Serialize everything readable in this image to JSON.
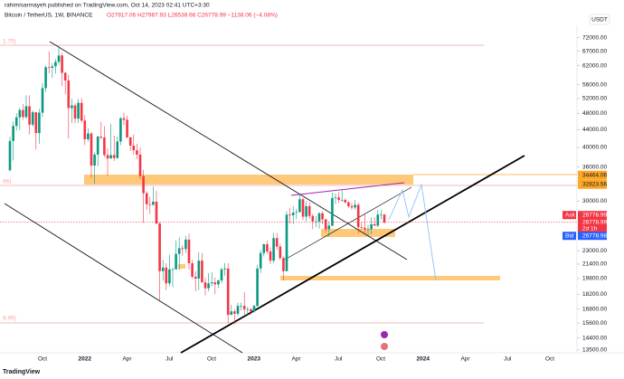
{
  "header": {
    "byline": "rahimisarmayeh published on TradingView.com, Oct 14, 2023 02:41 UTC+3:30",
    "symbol": "Bitcoin / TetherUS, 1W, BINANCE",
    "ohlc": "O27917.06 H27987.93 L26538.66 C26778.99 −1138.06 (−4.08%)",
    "currency": "USDT",
    "footer": "TradingView"
  },
  "chart_data": {
    "type": "candlestick",
    "log_scale": true,
    "up_color": "#089981",
    "down_color": "#f23645",
    "ylim": [
      13300,
      77000
    ],
    "yticks": [
      {
        "value": 72000,
        "label": "72000.00"
      },
      {
        "value": 67000,
        "label": "67000.00"
      },
      {
        "value": 62000,
        "label": "62000.00"
      },
      {
        "value": 56000,
        "label": "56000.00"
      },
      {
        "value": 52000,
        "label": "52000.00"
      },
      {
        "value": 48000,
        "label": "48000.00"
      },
      {
        "value": 44000,
        "label": "44000.00"
      },
      {
        "value": 40000,
        "label": "40000.00"
      },
      {
        "value": 36000,
        "label": "36000.00"
      },
      {
        "value": 30000,
        "label": "30000.00"
      },
      {
        "value": 23000,
        "label": "23000.00"
      },
      {
        "value": 21400,
        "label": "21400.00"
      },
      {
        "value": 19800,
        "label": "19800.00"
      },
      {
        "value": 18200,
        "label": "18200.00"
      },
      {
        "value": 16800,
        "label": "16800.00"
      },
      {
        "value": 15600,
        "label": "15600.00"
      },
      {
        "value": 14400,
        "label": "14400.00"
      },
      {
        "value": 13500,
        "label": "13500.00"
      }
    ],
    "x_labels": [
      "Oct",
      "2022",
      "Apr",
      "Jul",
      "Oct",
      "2023",
      "Apr",
      "Jul",
      "Oct",
      "2024",
      "Apr",
      "Jul",
      "Oct"
    ],
    "level_labels": [
      "1.75)",
      "66)",
      "9.99)"
    ],
    "price_labels": [
      {
        "value": 34464.06,
        "color": "#ffa726"
      },
      {
        "value": 32823.56,
        "color": "#ffa726"
      }
    ],
    "last_price": {
      "ask_text": "Ask",
      "ask": 26778.99,
      "close": 26778.99,
      "countdown": "2d 1h",
      "bid_text": "Bid",
      "bid": 26778.98
    },
    "candles": [
      [
        35400,
        42400,
        35200,
        41400
      ],
      [
        41400,
        46000,
        37300,
        44900
      ],
      [
        44900,
        48100,
        43800,
        47000
      ],
      [
        47000,
        49400,
        43900,
        48900
      ],
      [
        48900,
        50500,
        46400,
        47100
      ],
      [
        47100,
        52900,
        46600,
        49900
      ],
      [
        49900,
        52900,
        42900,
        45200
      ],
      [
        45200,
        48800,
        44700,
        48300
      ],
      [
        48300,
        48400,
        39600,
        43200
      ],
      [
        43200,
        49200,
        40800,
        48200
      ],
      [
        48200,
        56500,
        47100,
        55000
      ],
      [
        55000,
        62000,
        53900,
        61500
      ],
      [
        61500,
        67000,
        59500,
        61300
      ],
      [
        61300,
        62900,
        58000,
        61800
      ],
      [
        61800,
        64300,
        59400,
        63300
      ],
      [
        63300,
        69000,
        62300,
        65500
      ],
      [
        65500,
        66300,
        55600,
        59700
      ],
      [
        59700,
        59900,
        53200,
        57300
      ],
      [
        57300,
        59100,
        42000,
        49400
      ],
      [
        49400,
        51900,
        45600,
        50100
      ],
      [
        50100,
        50600,
        45500,
        46700
      ],
      [
        46700,
        51900,
        45600,
        50800
      ],
      [
        50800,
        52100,
        45700,
        46200
      ],
      [
        46200,
        47600,
        40500,
        41800
      ],
      [
        41800,
        44400,
        41300,
        43100
      ],
      [
        43100,
        43500,
        34000,
        36300
      ],
      [
        36300,
        38900,
        32900,
        38500
      ],
      [
        38500,
        42600,
        36200,
        42400
      ],
      [
        42400,
        45900,
        41700,
        42200
      ],
      [
        42200,
        44800,
        38000,
        38400
      ],
      [
        38400,
        39800,
        34300,
        37700
      ],
      [
        37700,
        45400,
        37700,
        38400
      ],
      [
        38400,
        42600,
        37200,
        37800
      ],
      [
        37800,
        42400,
        37600,
        41300
      ],
      [
        41300,
        47000,
        40500,
        46800
      ],
      [
        46800,
        48200,
        45100,
        46400
      ],
      [
        46400,
        47400,
        42100,
        42200
      ],
      [
        42200,
        42400,
        39200,
        40400
      ],
      [
        40400,
        42900,
        38500,
        39400
      ],
      [
        39400,
        40800,
        37600,
        38500
      ],
      [
        38500,
        40000,
        33700,
        34300
      ],
      [
        34300,
        35500,
        26700,
        31300
      ],
      [
        31300,
        31600,
        28600,
        29500
      ],
      [
        29500,
        30700,
        28000,
        29400
      ],
      [
        29400,
        32400,
        29300,
        29900
      ],
      [
        29900,
        31700,
        26500,
        26600
      ],
      [
        26600,
        26800,
        17600,
        20600
      ],
      [
        20600,
        21900,
        19600,
        21000
      ],
      [
        21000,
        21500,
        18600,
        19300
      ],
      [
        19300,
        22500,
        19000,
        20800
      ],
      [
        20800,
        21000,
        18900,
        20800
      ],
      [
        20800,
        24300,
        20800,
        22600
      ],
      [
        22600,
        24700,
        20700,
        23300
      ],
      [
        23300,
        23700,
        22400,
        23200
      ],
      [
        23200,
        24900,
        22700,
        24400
      ],
      [
        24400,
        25200,
        20800,
        21500
      ],
      [
        21500,
        21900,
        19800,
        20000
      ],
      [
        20000,
        20600,
        18500,
        19800
      ],
      [
        19800,
        22800,
        18600,
        21800
      ],
      [
        21800,
        22700,
        19400,
        19400
      ],
      [
        19400,
        19900,
        18100,
        18800
      ],
      [
        18800,
        20400,
        18500,
        19300
      ],
      [
        19300,
        20500,
        19000,
        19400
      ],
      [
        19400,
        19900,
        18200,
        19200
      ],
      [
        19200,
        19700,
        18800,
        19600
      ],
      [
        19600,
        21000,
        19300,
        20800
      ],
      [
        20800,
        21500,
        20100,
        20900
      ],
      [
        20900,
        21500,
        15600,
        16300
      ],
      [
        16300,
        17200,
        16300,
        16600
      ],
      [
        16600,
        16800,
        15500,
        16400
      ],
      [
        16400,
        17400,
        16200,
        17100
      ],
      [
        17100,
        17400,
        16700,
        17100
      ],
      [
        17100,
        18400,
        16300,
        16800
      ],
      [
        16800,
        17000,
        16300,
        16800
      ],
      [
        16800,
        16900,
        16300,
        16600
      ],
      [
        16600,
        17200,
        16500,
        17100
      ],
      [
        17100,
        21300,
        17000,
        20900
      ],
      [
        20900,
        23100,
        20400,
        22700
      ],
      [
        22700,
        23900,
        22300,
        23800
      ],
      [
        23800,
        24300,
        22600,
        22900
      ],
      [
        22900,
        23400,
        21400,
        21800
      ],
      [
        21800,
        25300,
        21500,
        24600
      ],
      [
        24600,
        25300,
        23100,
        23500
      ],
      [
        23500,
        23900,
        21900,
        22100
      ],
      [
        22100,
        22300,
        19600,
        20600
      ],
      [
        20600,
        28400,
        20600,
        27900
      ],
      [
        27900,
        28900,
        26600,
        27800
      ],
      [
        27800,
        29200,
        26500,
        28200
      ],
      [
        28200,
        28800,
        27200,
        28300
      ],
      [
        28300,
        31000,
        28200,
        30300
      ],
      [
        30300,
        30500,
        27100,
        27600
      ],
      [
        27600,
        30000,
        26900,
        29200
      ],
      [
        29200,
        29800,
        27300,
        27700
      ],
      [
        27700,
        28000,
        25800,
        26900
      ],
      [
        26900,
        27700,
        26100,
        26900
      ],
      [
        26900,
        28300,
        25900,
        28100
      ],
      [
        28100,
        28400,
        26500,
        27200
      ],
      [
        27200,
        27300,
        25400,
        25800
      ],
      [
        25800,
        26900,
        24800,
        26300
      ],
      [
        26300,
        31400,
        26200,
        30500
      ],
      [
        30500,
        31300,
        29500,
        30600
      ],
      [
        30600,
        31500,
        29700,
        30200
      ],
      [
        30200,
        31800,
        29900,
        30200
      ],
      [
        30200,
        30400,
        29600,
        29800
      ],
      [
        29800,
        30000,
        28900,
        29200
      ],
      [
        29200,
        29700,
        28600,
        29000
      ],
      [
        29000,
        30200,
        28700,
        29400
      ],
      [
        29400,
        29700,
        25200,
        26100
      ],
      [
        26100,
        26800,
        25800,
        26000
      ],
      [
        26000,
        28100,
        25300,
        25800
      ],
      [
        25800,
        26400,
        24900,
        25800
      ],
      [
        25800,
        27500,
        25100,
        26500
      ],
      [
        26500,
        27500,
        26400,
        26300
      ],
      [
        26300,
        28600,
        26100,
        27900
      ],
      [
        27900,
        28600,
        27200,
        27917.06
      ],
      [
        27917.06,
        27987.93,
        26538.66,
        26778.99
      ]
    ]
  }
}
